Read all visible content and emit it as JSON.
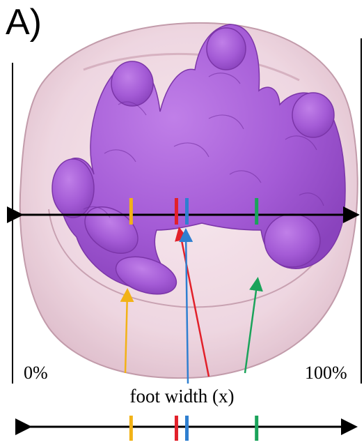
{
  "figure": {
    "panel_label": "A)",
    "scale_start_label": "0%",
    "scale_end_label": "100%",
    "axis_caption": "foot width (x)"
  },
  "colors": {
    "shell": "#e8c8d4",
    "shell_edge": "#b88a9c",
    "tissue": "#a45bd6",
    "tissue_dark": "#7b35a8",
    "axis": "#000000",
    "marker_yellow": "#f2b216",
    "marker_red": "#e2202a",
    "marker_blue": "#2f7fd0",
    "marker_green": "#1aa35a"
  },
  "markers": [
    {
      "name": "yellow",
      "color_key": "marker_yellow",
      "position_pct": 34
    },
    {
      "name": "red",
      "color_key": "marker_red",
      "position_pct": 47
    },
    {
      "name": "blue",
      "color_key": "marker_blue",
      "position_pct": 50
    },
    {
      "name": "green",
      "color_key": "marker_green",
      "position_pct": 70
    }
  ]
}
